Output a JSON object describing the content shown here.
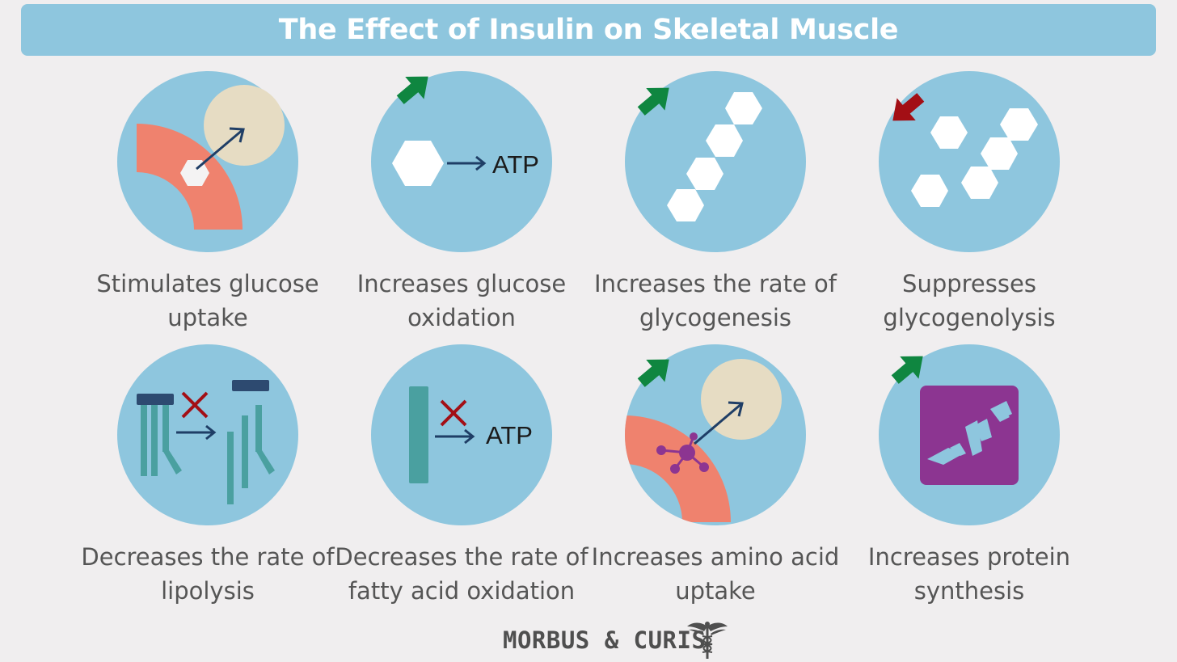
{
  "title": "The Effect of Insulin on Skeletal Muscle",
  "colors": {
    "background": "#f0eeef",
    "banner": "#8ec6de",
    "circle": "#8ec6de",
    "membrane": "#ef826e",
    "cell": "#e6dcc3",
    "arrow_up": "#0f8640",
    "arrow_down": "#a30f15",
    "dark_blue": "#1f3e66",
    "fatty_acid": "#4aa0a0",
    "amino_acid": "#8c3591",
    "protein_box": "#8c3591"
  },
  "panels": [
    {
      "caption_lines": [
        "Stimulates glucose",
        "uptake"
      ],
      "direction": "up",
      "icon": "glucose-uptake"
    },
    {
      "caption_lines": [
        "Increases glucose",
        "oxidation"
      ],
      "direction": "up",
      "icon": "glucose-oxidation",
      "label": "ATP"
    },
    {
      "caption_lines": [
        "Increases the rate of",
        "glycogenesis"
      ],
      "direction": "up",
      "icon": "glycogenesis"
    },
    {
      "caption_lines": [
        "Suppresses",
        "glycogenolysis"
      ],
      "direction": "down",
      "icon": "glycogenolysis"
    },
    {
      "caption_lines": [
        "Decreases the rate of",
        "lipolysis"
      ],
      "direction": "down",
      "icon": "lipolysis"
    },
    {
      "caption_lines": [
        "Decreases the rate of",
        "fatty acid oxidation"
      ],
      "direction": "down",
      "icon": "fatty-acid-oxidation",
      "label": "ATP"
    },
    {
      "caption_lines": [
        "Increases amino acid",
        "uptake"
      ],
      "direction": "up",
      "icon": "amino-acid-uptake"
    },
    {
      "caption_lines": [
        "Increases protein",
        "synthesis"
      ],
      "direction": "up",
      "icon": "protein-synthesis"
    }
  ],
  "footer": {
    "brand": "MORBUS & CURIS",
    "logo_icon": "caduceus-icon"
  }
}
